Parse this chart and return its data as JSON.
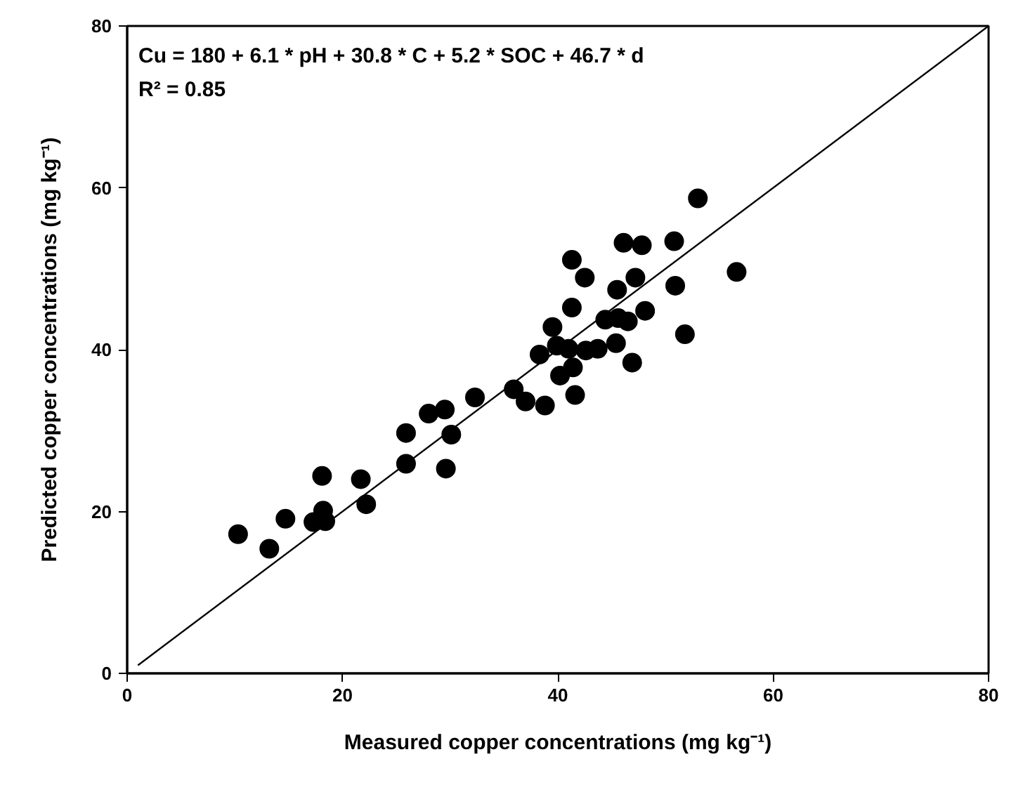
{
  "chart_data": {
    "type": "scatter",
    "xlabel": "Measured copper concentrations (mg kg⁻¹)",
    "ylabel": "Predicted copper concentrations (mg kg⁻¹)",
    "annotations": [
      "Cu = 180 + 6.1 * pH + 30.8 * C + 5.2 * SOC + 46.7 * d",
      "R² = 0.85"
    ],
    "xlim": [
      0,
      80
    ],
    "ylim": [
      0,
      80
    ],
    "xticks": [
      0,
      20,
      40,
      60,
      80
    ],
    "yticks": [
      0,
      20,
      40,
      60,
      80
    ],
    "grid": false,
    "series": [
      {
        "marker": "circle",
        "color": "#000000",
        "x": [
          10.3,
          13.2,
          14.7,
          17.3,
          18.1,
          18.2,
          18.4,
          21.7,
          22.2,
          25.9,
          25.9,
          28,
          29.5,
          29.6,
          30.1,
          32.3,
          35.9,
          37,
          38.3,
          38.8,
          39.5,
          39.9,
          40.2,
          41,
          41.3,
          41.3,
          41.4,
          41.6,
          42.5,
          42.6,
          43.7,
          44.4,
          45.4,
          45.5,
          45.6,
          46.1,
          46.5,
          46.9,
          47.2,
          47.8,
          48.1,
          50.8,
          50.9,
          51.8,
          53,
          56.6
        ],
        "values": [
          17.2,
          15.4,
          19.1,
          18.7,
          24.4,
          20.1,
          18.8,
          24,
          20.9,
          29.7,
          25.9,
          32.1,
          32.6,
          25.3,
          29.5,
          34.1,
          35.1,
          33.6,
          39.4,
          33.1,
          42.8,
          40.5,
          36.8,
          40.1,
          51.1,
          45.2,
          37.8,
          34.4,
          48.9,
          39.9,
          40.1,
          43.7,
          40.8,
          47.4,
          43.9,
          53.2,
          43.5,
          38.4,
          48.9,
          52.9,
          44.8,
          53.4,
          47.9,
          41.9,
          58.7,
          49.6
        ]
      },
      {
        "type": "line",
        "color": "#000000",
        "line_style": "solid",
        "x": [
          1,
          80
        ],
        "values": [
          1,
          80
        ]
      }
    ]
  }
}
